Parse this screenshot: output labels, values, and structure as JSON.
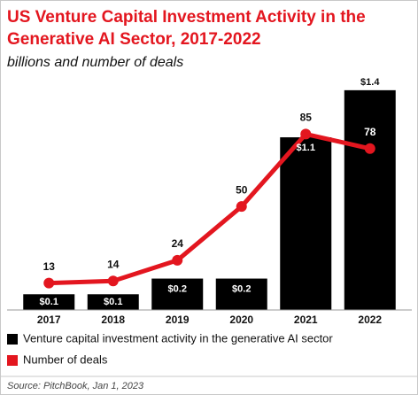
{
  "chart_data": {
    "type": "bar_line",
    "title": [
      "US Venture Capital Investment Activity in the",
      "Generative AI Sector, 2017-2022"
    ],
    "subtitle": "billions and number of deals",
    "categories": [
      "2017",
      "2018",
      "2019",
      "2020",
      "2021",
      "2022"
    ],
    "series": [
      {
        "name": "Venture capital investment activity in the generative AI sector",
        "type": "bar",
        "color": "#000000",
        "values": [
          0.1,
          0.1,
          0.2,
          0.2,
          1.1,
          1.4
        ],
        "value_labels": [
          "$0.1",
          "$0.1",
          "$0.2",
          "$0.2",
          "$1.1",
          "$1.4"
        ]
      },
      {
        "name": "Number of deals",
        "type": "line",
        "axis": "y2",
        "color": "#e3161f",
        "values": [
          13,
          14,
          24,
          50,
          85,
          78
        ]
      }
    ],
    "ylim": [
      0,
      1.45
    ],
    "y2lim": [
      0,
      110
    ],
    "source": "Source: PitchBook, Jan 1, 2023"
  }
}
